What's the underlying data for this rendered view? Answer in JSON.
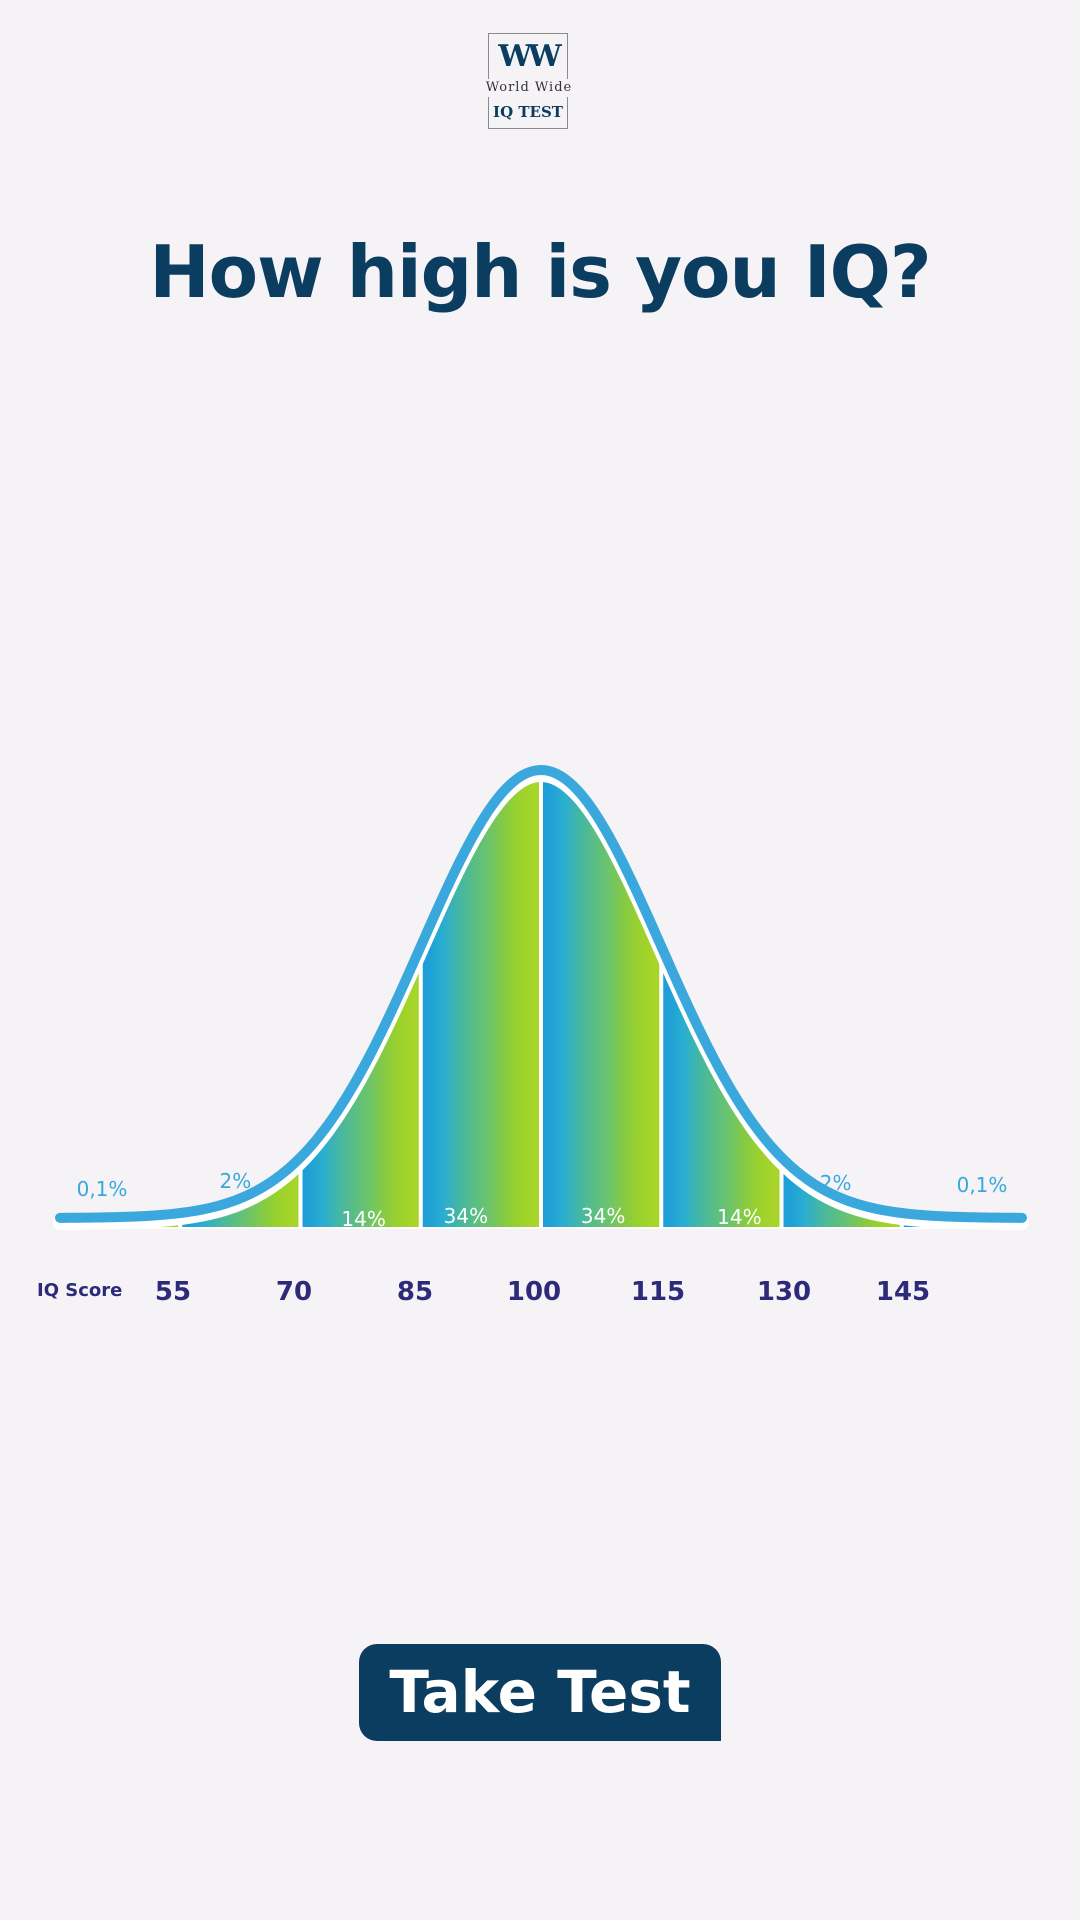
{
  "logo": {
    "mark": "WW",
    "line1": "World Wide",
    "line2": "IQ TEST"
  },
  "headline": "How high is you IQ?",
  "chart_data": {
    "type": "area",
    "title": "",
    "xlabel": "IQ Score",
    "ylabel": "",
    "x_ticks": [
      "55",
      "70",
      "85",
      "100",
      "115",
      "130",
      "145"
    ],
    "xlim": [
      40,
      160
    ],
    "distribution": {
      "kind": "normal",
      "mean": 100,
      "sd": 15
    },
    "segments": [
      {
        "from": 40,
        "to": 55,
        "percent_label": "0,1%",
        "color": "#1e9fd6"
      },
      {
        "from": 55,
        "to": 70,
        "percent_label": "2%",
        "color": "#2aaed1"
      },
      {
        "from": 70,
        "to": 85,
        "percent_label": "14%",
        "color": "#43b6a5"
      },
      {
        "from": 85,
        "to": 100,
        "percent_label": "34%",
        "color": "#58bd86"
      },
      {
        "from": 100,
        "to": 115,
        "percent_label": "34%",
        "color": "#6cc46c"
      },
      {
        "from": 115,
        "to": 130,
        "percent_label": "14%",
        "color": "#85ca45"
      },
      {
        "from": 130,
        "to": 145,
        "percent_label": "2%",
        "color": "#9ad22c"
      },
      {
        "from": 145,
        "to": 160,
        "percent_label": "0,1%",
        "color": "#a8d52a"
      }
    ],
    "curve_color": "#3aa8dc",
    "tick_color": "#2e2a7a",
    "outer_label_color": "#3aa8dc",
    "inner_label_color": "#ffffff"
  },
  "cta": {
    "label": "Take Test"
  }
}
